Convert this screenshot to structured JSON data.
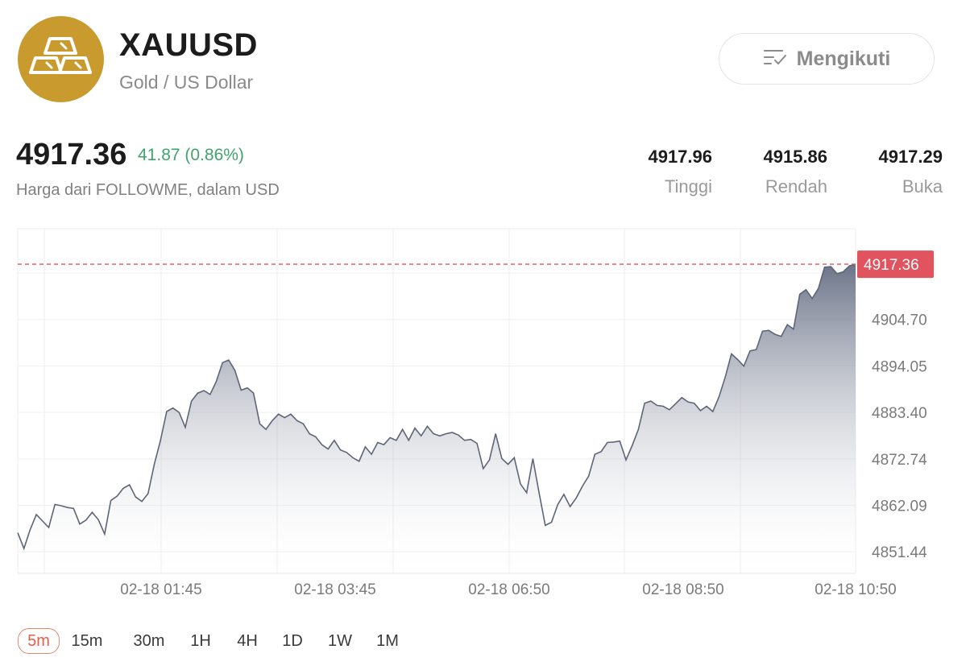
{
  "header": {
    "logo_icon": "gold-bars-icon",
    "logo_color": "#c99a2e",
    "symbol": "XAUUSD",
    "name": "Gold / US Dollar",
    "follow_button": {
      "icon": "follow-list-icon",
      "label": "Mengikuti"
    }
  },
  "quote": {
    "price": "4917.36",
    "change": "41.87 (0.86%)",
    "change_color": "#3fa36b",
    "source_note": "Harga dari FOLLOWME, dalam USD",
    "stats": [
      {
        "value": "4917.96",
        "label": "Tinggi"
      },
      {
        "value": "4915.86",
        "label": "Rendah"
      },
      {
        "value": "4917.29",
        "label": "Buka"
      }
    ]
  },
  "chart_data": {
    "type": "area",
    "y_ticks": [
      "4904.70",
      "4894.05",
      "4883.40",
      "4872.74",
      "4862.09",
      "4851.44"
    ],
    "x_labels": [
      "02-18 01:45",
      "02-18 03:45",
      "02-18 06:50",
      "02-18 08:50",
      "02-18 10:50"
    ],
    "current_price_label": "4917.36",
    "current_price": 4917.36,
    "ylim": [
      4846.5,
      4925.5
    ],
    "grid": true,
    "line_color": "#5d6577",
    "marker_color": "#e0535f",
    "series": [
      {
        "values": [
          4855.8,
          4852.2,
          4856.5,
          4860.0,
          4858.5,
          4857.0,
          4862.3,
          4862.0,
          4861.6,
          4861.4,
          4857.8,
          4858.7,
          4860.5,
          4858.8,
          4855.5,
          4863.2,
          4864.2,
          4866.0,
          4866.8,
          4864.0,
          4863.0,
          4864.8,
          4871.5,
          4877.0,
          4883.6,
          4884.4,
          4883.4,
          4880.0,
          4886.0,
          4887.8,
          4888.4,
          4887.5,
          4890.5,
          4894.8,
          4895.4,
          4893.0,
          4888.5,
          4889.0,
          4887.8,
          4880.8,
          4879.5,
          4881.5,
          4883.0,
          4882.2,
          4883.0,
          4881.5,
          4880.8,
          4878.5,
          4877.8,
          4876.0,
          4875.0,
          4877.0,
          4874.8,
          4874.2,
          4873.0,
          4872.2,
          4875.5,
          4873.8,
          4876.5,
          4876.0,
          4877.6,
          4877.0,
          4879.5,
          4877.0,
          4879.8,
          4878.0,
          4880.2,
          4878.5,
          4878.0,
          4878.5,
          4878.8,
          4878.2,
          4877.0,
          4877.2,
          4876.3,
          4870.5,
          4872.5,
          4878.5,
          4872.8,
          4871.5,
          4873.0,
          4867.0,
          4865.0,
          4872.8,
          4865.0,
          4857.5,
          4858.2,
          4862.2,
          4864.6,
          4861.8,
          4863.8,
          4866.5,
          4868.8,
          4873.8,
          4874.4,
          4876.5,
          4876.6,
          4876.8,
          4872.5,
          4875.8,
          4879.5,
          4885.5,
          4886.0,
          4885.0,
          4884.8,
          4884.0,
          4885.4,
          4886.8,
          4885.8,
          4885.5,
          4883.8,
          4884.8,
          4883.6,
          4887.0,
          4891.5,
          4896.8,
          4895.5,
          4894.0,
          4897.5,
          4897.8,
          4902.0,
          4902.2,
          4901.3,
          4900.8,
          4903.5,
          4902.5,
          4910.5,
          4911.5,
          4909.5,
          4911.8,
          4916.7,
          4916.8,
          4915.2,
          4915.6,
          4917.0,
          4917.36
        ]
      }
    ]
  },
  "timeframes": {
    "active": "5m",
    "items": [
      "5m",
      "15m",
      "30m",
      "1H",
      "4H",
      "1D",
      "1W",
      "1M"
    ]
  }
}
